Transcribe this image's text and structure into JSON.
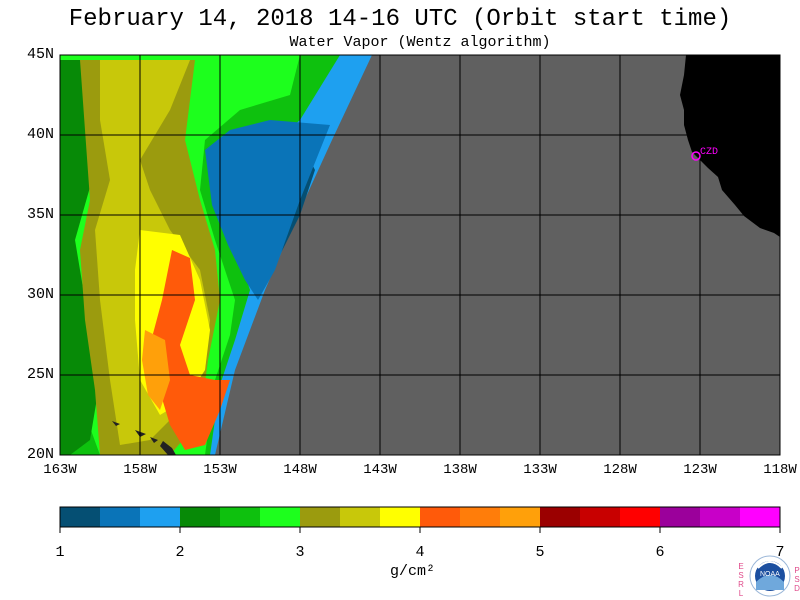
{
  "title": "February 14, 2018  14-16 UTC  (Orbit start time)",
  "subtitle": "Water Vapor (Wentz algorithm)",
  "lat_labels": [
    "45N",
    "40N",
    "35N",
    "30N",
    "25N",
    "20N"
  ],
  "lon_labels": [
    "163W",
    "158W",
    "153W",
    "148W",
    "143W",
    "138W",
    "133W",
    "128W",
    "123W",
    "118W"
  ],
  "station_label": "CZD",
  "station_color": "#ff00ff",
  "colorbar": {
    "ticks": [
      "1",
      "2",
      "3",
      "4",
      "5",
      "6",
      "7"
    ],
    "unit": "g/cm²",
    "colors": [
      "#054f73",
      "#0a74b8",
      "#1ea0f0",
      "#078a07",
      "#0ec10e",
      "#1dff1d",
      "#9b9b0e",
      "#c8c80a",
      "#ffff00",
      "#ff5a0a",
      "#ff7d0a",
      "#ffa00a",
      "#9b0000",
      "#c80000",
      "#ff0000",
      "#9b009b",
      "#c800c8",
      "#ff00ff"
    ]
  },
  "logos": {
    "left_letters": [
      "E",
      "S",
      "R",
      "L"
    ],
    "right_letters": [
      "P",
      "S",
      "D"
    ],
    "noaa_text": "NOAA"
  },
  "map_colors": {
    "no_data": "#606060",
    "land": "#000000",
    "grid": "#000000"
  }
}
